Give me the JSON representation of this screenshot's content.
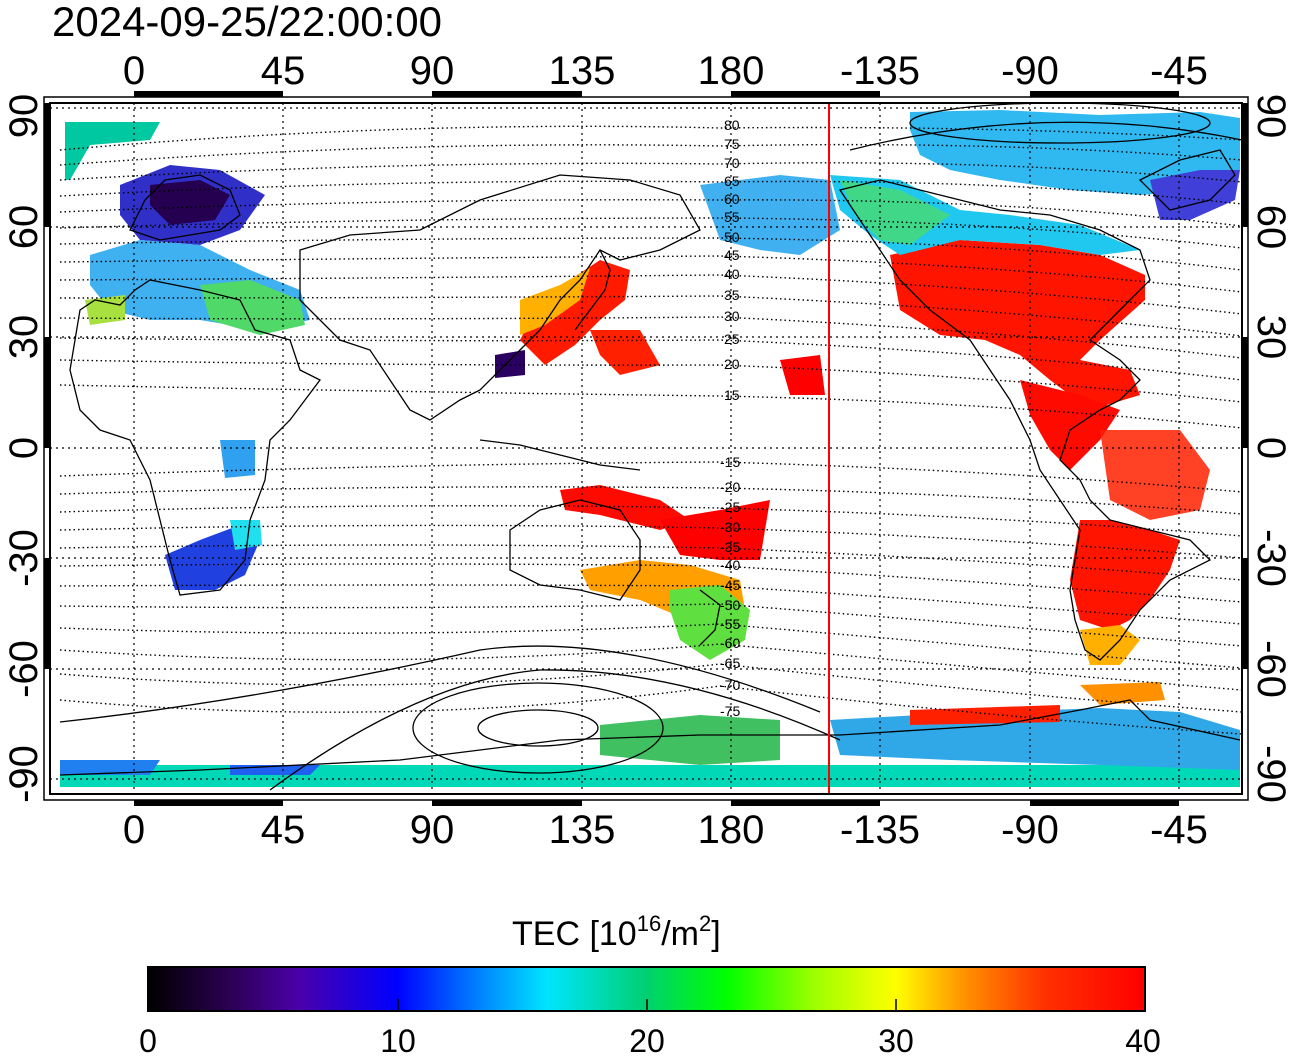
{
  "title": "2024-09-25/22:00:00",
  "map": {
    "lon_ticks": [
      "0",
      "45",
      "90",
      "135",
      "180",
      "-135",
      "-90",
      "-45"
    ],
    "lat_ticks": [
      "90",
      "60",
      "30",
      "0",
      "-30",
      "-60",
      "-90"
    ],
    "north_contour_labels": [
      "80",
      "75",
      "70",
      "65",
      "60",
      "55",
      "50",
      "45",
      "40",
      "35",
      "30",
      "25",
      "20",
      "15"
    ],
    "south_contour_labels": [
      "-15",
      "-20",
      "-25",
      "-30",
      "-35",
      "-40",
      "-45",
      "-50",
      "-55",
      "-60",
      "-65",
      "-70",
      "-75"
    ],
    "terminator_line_color": "#ff0000",
    "grid": "dotted",
    "coastline_color": "#000000"
  },
  "colorbar": {
    "title_main": "TEC  [10",
    "title_sup1": "16",
    "title_mid": "/m",
    "title_sup2": "2",
    "title_end": "]",
    "tick_labels": [
      "0",
      "10",
      "20",
      "30",
      "40"
    ],
    "range": [
      0,
      40
    ],
    "colors": [
      "#000000",
      "#2a0050",
      "#4b00a8",
      "#0000ff",
      "#0070ff",
      "#00e5ff",
      "#00d070",
      "#00ff00",
      "#a0ff00",
      "#ffff00",
      "#ff9000",
      "#ff3000",
      "#ff0000"
    ]
  }
}
